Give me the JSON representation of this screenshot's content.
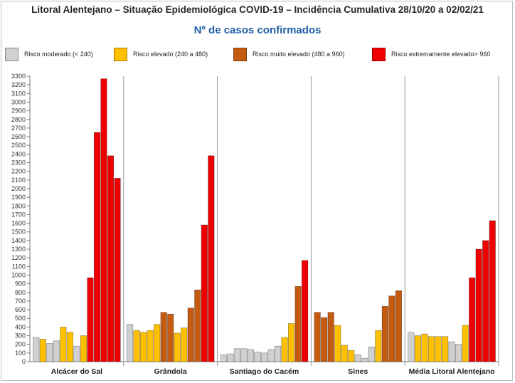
{
  "title": "Litoral Alentejano – Situação Epidemiológica COVID-19 – Incidência Cumulativa  28/10/20 a 02/02/21",
  "subtitle": "Nº de casos confirmados",
  "colors": {
    "moderate": "#d0d0d0",
    "high": "#ffc000",
    "very_high": "#c55a11",
    "extreme": "#ee0000",
    "subtitle": "#1f5fa8"
  },
  "legend": [
    {
      "label": "Risco moderado (< 240)",
      "color_key": "moderate"
    },
    {
      "label": "Risco elevado (240 a 480)",
      "color_key": "high"
    },
    {
      "label": "Risco muito elevado (480 a 960)",
      "color_key": "very_high"
    },
    {
      "label": "Risco extremamente elevado> 960",
      "color_key": "extreme"
    }
  ],
  "chart_data": {
    "type": "bar",
    "title": "Nº de casos confirmados",
    "ylim": [
      0,
      3300
    ],
    "ytick_step": 100,
    "grid": false,
    "legend_position": "top",
    "groups": [
      {
        "name": "Alcácer do Sal",
        "values": [
          280,
          260,
          210,
          240,
          400,
          340,
          180,
          300,
          970,
          2650,
          3270,
          2380,
          2120
        ],
        "risk": [
          "moderate",
          "high",
          "moderate",
          "moderate",
          "high",
          "high",
          "moderate",
          "high",
          "extreme",
          "extreme",
          "extreme",
          "extreme",
          "extreme"
        ]
      },
      {
        "name": "Grândola",
        "values": [
          430,
          360,
          340,
          360,
          430,
          570,
          550,
          330,
          390,
          620,
          830,
          1580,
          2380
        ],
        "risk": [
          "moderate",
          "high",
          "high",
          "high",
          "high",
          "very_high",
          "very_high",
          "high",
          "high",
          "very_high",
          "very_high",
          "extreme",
          "extreme"
        ]
      },
      {
        "name": "Santiago do Cacém",
        "values": [
          80,
          90,
          150,
          150,
          140,
          110,
          100,
          140,
          180,
          280,
          440,
          870,
          1170
        ],
        "risk": [
          "moderate",
          "moderate",
          "moderate",
          "moderate",
          "moderate",
          "moderate",
          "moderate",
          "moderate",
          "moderate",
          "high",
          "high",
          "very_high",
          "extreme"
        ]
      },
      {
        "name": "Sines",
        "values": [
          570,
          510,
          570,
          420,
          190,
          130,
          80,
          40,
          170,
          360,
          640,
          760,
          820
        ],
        "risk": [
          "very_high",
          "very_high",
          "very_high",
          "high",
          "high",
          "high",
          "moderate",
          "moderate",
          "moderate",
          "high",
          "very_high",
          "very_high",
          "very_high"
        ]
      },
      {
        "name": "Média Litoral Alentejano",
        "values": [
          340,
          300,
          320,
          290,
          290,
          290,
          230,
          200,
          420,
          970,
          1300,
          1400,
          1630
        ],
        "risk": [
          "moderate",
          "high",
          "high",
          "high",
          "high",
          "high",
          "moderate",
          "moderate",
          "high",
          "extreme",
          "extreme",
          "extreme",
          "extreme"
        ]
      }
    ]
  }
}
